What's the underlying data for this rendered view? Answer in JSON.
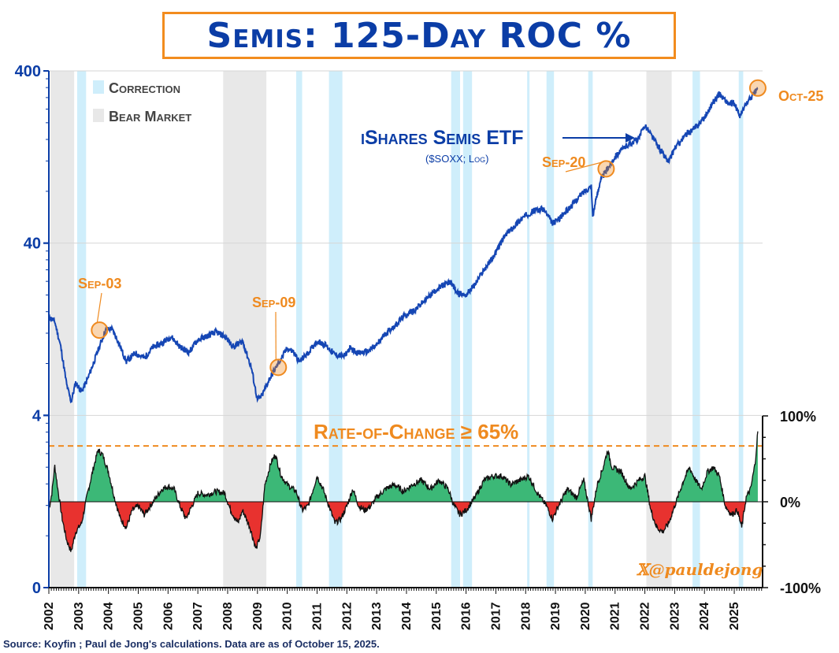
{
  "title": "Semis: 125-Day ROC %",
  "source": "Source: Koyfin ; Paul de Jong's calculations. Data are as of October 15, 2025.",
  "watermark": "𝕏@pauldejong",
  "colors": {
    "price": "#1546b4",
    "correction": "#cfeefb",
    "bear": "#e8e8e8",
    "positive": "#3cb877",
    "negative": "#e8322f",
    "threshold": "#ef8a1f",
    "accent": "#ef8a1f"
  },
  "chart_data": [
    {
      "type": "line",
      "name": "iShares Semis ETF",
      "series_label": "iShares Semis ETF",
      "series_sublabel": "($SOXX; Log)",
      "y_scale": "log",
      "ylim": [
        0,
        400
      ],
      "yticks": [
        "0",
        "4",
        "40",
        "400"
      ],
      "xticks": [
        "2002",
        "2003",
        "2004",
        "2005",
        "2006",
        "2007",
        "2008",
        "2009",
        "2010",
        "2011",
        "2012",
        "2013",
        "2014",
        "2015",
        "2016",
        "2017",
        "2018",
        "2019",
        "2020",
        "2021",
        "2022",
        "2023",
        "2024",
        "2025"
      ],
      "legend": [
        {
          "label": "Correction"
        },
        {
          "label": "Bear Market"
        }
      ],
      "bear_markets": [
        [
          "2002.05",
          "2002.85"
        ],
        [
          "2007.85",
          "2009.3"
        ],
        [
          "2022.05",
          "2022.9"
        ]
      ],
      "corrections": [
        [
          "2002.95",
          "2003.25"
        ],
        [
          "2010.3",
          "2010.5"
        ],
        [
          "2011.4",
          "2011.85"
        ],
        [
          "2015.5",
          "2015.8"
        ],
        [
          "2015.9",
          "2016.2"
        ],
        [
          "2018.05",
          "2018.1"
        ],
        [
          "2018.7",
          "2018.95"
        ],
        [
          "2020.1",
          "2020.25"
        ],
        [
          "2023.6",
          "2023.85"
        ],
        [
          "2025.15",
          "2025.3"
        ]
      ],
      "points": [
        [
          "2002.0",
          15
        ],
        [
          "2002.2",
          14
        ],
        [
          "2002.4",
          10
        ],
        [
          "2002.6",
          6
        ],
        [
          "2002.75",
          4.8
        ],
        [
          "2002.9",
          6.2
        ],
        [
          "2003.1",
          5.5
        ],
        [
          "2003.3",
          6.5
        ],
        [
          "2003.6",
          9
        ],
        [
          "2003.9",
          12.5
        ],
        [
          "2004.1",
          12.8
        ],
        [
          "2004.3",
          11
        ],
        [
          "2004.6",
          8.2
        ],
        [
          "2004.9",
          9.2
        ],
        [
          "2005.2",
          8.6
        ],
        [
          "2005.5",
          10
        ],
        [
          "2005.8",
          10.5
        ],
        [
          "2006.1",
          11.5
        ],
        [
          "2006.4",
          10
        ],
        [
          "2006.7",
          9.3
        ],
        [
          "2007.0",
          11
        ],
        [
          "2007.3",
          11.5
        ],
        [
          "2007.6",
          12.2
        ],
        [
          "2007.9",
          11.5
        ],
        [
          "2008.2",
          10
        ],
        [
          "2008.5",
          10.8
        ],
        [
          "2008.8",
          7.5
        ],
        [
          "2009.0",
          4.9
        ],
        [
          "2009.15",
          5.2
        ],
        [
          "2009.4",
          6.5
        ],
        [
          "2009.7",
          8
        ],
        [
          "2010.0",
          9.8
        ],
        [
          "2010.2",
          9.4
        ],
        [
          "2010.4",
          8.2
        ],
        [
          "2010.7",
          9.2
        ],
        [
          "2011.0",
          10.8
        ],
        [
          "2011.3",
          10.2
        ],
        [
          "2011.6",
          9
        ],
        [
          "2011.9",
          8.8
        ],
        [
          "2012.1",
          9.8
        ],
        [
          "2012.4",
          9.2
        ],
        [
          "2012.7",
          9.4
        ],
        [
          "2013.0",
          10.2
        ],
        [
          "2013.3",
          12
        ],
        [
          "2013.6",
          13.2
        ],
        [
          "2013.9",
          15
        ],
        [
          "2014.3",
          16.5
        ],
        [
          "2014.7",
          19.2
        ],
        [
          "2015.0",
          21.5
        ],
        [
          "2015.3",
          23
        ],
        [
          "2015.5",
          23.8
        ],
        [
          "2015.7",
          20.5
        ],
        [
          "2016.0",
          20
        ],
        [
          "2016.3",
          23
        ],
        [
          "2016.6",
          28
        ],
        [
          "2016.9",
          33
        ],
        [
          "2017.3",
          44
        ],
        [
          "2017.7",
          52
        ],
        [
          "2018.0",
          58
        ],
        [
          "2018.3",
          62
        ],
        [
          "2018.6",
          63
        ],
        [
          "2018.9",
          52
        ],
        [
          "2019.1",
          55
        ],
        [
          "2019.5",
          65
        ],
        [
          "2019.9",
          78
        ],
        [
          "2020.2",
          86
        ],
        [
          "2020.25",
          58
        ],
        [
          "2020.5",
          92
        ],
        [
          "2020.8",
          112
        ],
        [
          "2021.0",
          128
        ],
        [
          "2021.4",
          148
        ],
        [
          "2021.8",
          162
        ],
        [
          "2022.0",
          195
        ],
        [
          "2022.3",
          160
        ],
        [
          "2022.6",
          132
        ],
        [
          "2022.8",
          118
        ],
        [
          "2023.0",
          142
        ],
        [
          "2023.4",
          172
        ],
        [
          "2023.7",
          187
        ],
        [
          "2024.0",
          215
        ],
        [
          "2024.3",
          265
        ],
        [
          "2024.5",
          295
        ],
        [
          "2024.8",
          258
        ],
        [
          "2025.0",
          258
        ],
        [
          "2025.2",
          218
        ],
        [
          "2025.4",
          258
        ],
        [
          "2025.65",
          292
        ],
        [
          "2025.79",
          318
        ]
      ],
      "annotations": [
        {
          "label": "Sep-03",
          "x": "2003.7",
          "y": 12.5
        },
        {
          "label": "Sep-09",
          "x": "2009.7",
          "y": 7.6
        },
        {
          "label": "Sep-20",
          "x": "2020.7",
          "y": 108
        },
        {
          "label": "Oct-25",
          "x": "2025.79",
          "y": 318
        }
      ]
    },
    {
      "type": "area",
      "name": "125-Day ROC %",
      "ylim": [
        -100,
        100
      ],
      "yticks": [
        "-100%",
        "0%",
        "100%"
      ],
      "threshold": {
        "label": "Rate-of-Change ≥ 65%",
        "value": 65
      },
      "points": [
        [
          "2002.0",
          -10
        ],
        [
          "2002.1",
          10
        ],
        [
          "2002.2",
          42
        ],
        [
          "2002.3",
          15
        ],
        [
          "2002.45",
          -20
        ],
        [
          "2002.6",
          -45
        ],
        [
          "2002.75",
          -58
        ],
        [
          "2002.9",
          -35
        ],
        [
          "2003.1",
          -25
        ],
        [
          "2003.3",
          10
        ],
        [
          "2003.5",
          40
        ],
        [
          "2003.65",
          60
        ],
        [
          "2003.8",
          55
        ],
        [
          "2004.0",
          35
        ],
        [
          "2004.2",
          5
        ],
        [
          "2004.4",
          -20
        ],
        [
          "2004.6",
          -30
        ],
        [
          "2004.8",
          -10
        ],
        [
          "2005.0",
          -5
        ],
        [
          "2005.2",
          -15
        ],
        [
          "2005.4",
          -5
        ],
        [
          "2005.6",
          5
        ],
        [
          "2005.8",
          15
        ],
        [
          "2006.0",
          18
        ],
        [
          "2006.2",
          15
        ],
        [
          "2006.4",
          -5
        ],
        [
          "2006.6",
          -20
        ],
        [
          "2006.8",
          -5
        ],
        [
          "2007.0",
          10
        ],
        [
          "2007.3",
          8
        ],
        [
          "2007.6",
          12
        ],
        [
          "2007.9",
          10
        ],
        [
          "2008.1",
          -10
        ],
        [
          "2008.35",
          -25
        ],
        [
          "2008.5",
          -10
        ],
        [
          "2008.75",
          -30
        ],
        [
          "2008.95",
          -55
        ],
        [
          "2009.1",
          -40
        ],
        [
          "2009.25",
          20
        ],
        [
          "2009.45",
          45
        ],
        [
          "2009.6",
          55
        ],
        [
          "2009.8",
          30
        ],
        [
          "2010.0",
          20
        ],
        [
          "2010.3",
          12
        ],
        [
          "2010.5",
          -10
        ],
        [
          "2010.7",
          -5
        ],
        [
          "2011.0",
          30
        ],
        [
          "2011.2",
          15
        ],
        [
          "2011.4",
          -5
        ],
        [
          "2011.6",
          -25
        ],
        [
          "2011.8",
          -20
        ],
        [
          "2012.0",
          -5
        ],
        [
          "2012.2",
          15
        ],
        [
          "2012.4",
          -5
        ],
        [
          "2012.6",
          -10
        ],
        [
          "2012.8",
          -5
        ],
        [
          "2013.0",
          5
        ],
        [
          "2013.3",
          15
        ],
        [
          "2013.6",
          20
        ],
        [
          "2013.9",
          12
        ],
        [
          "2014.2",
          20
        ],
        [
          "2014.5",
          25
        ],
        [
          "2014.8",
          15
        ],
        [
          "2015.1",
          25
        ],
        [
          "2015.4",
          15
        ],
        [
          "2015.6",
          -5
        ],
        [
          "2015.8",
          -15
        ],
        [
          "2016.0",
          -10
        ],
        [
          "2016.3",
          5
        ],
        [
          "2016.6",
          25
        ],
        [
          "2016.9",
          30
        ],
        [
          "2017.2",
          30
        ],
        [
          "2017.5",
          20
        ],
        [
          "2017.8",
          25
        ],
        [
          "2018.1",
          30
        ],
        [
          "2018.4",
          10
        ],
        [
          "2018.7",
          -5
        ],
        [
          "2018.9",
          -20
        ],
        [
          "2019.1",
          -5
        ],
        [
          "2019.4",
          15
        ],
        [
          "2019.7",
          5
        ],
        [
          "2019.95",
          25
        ],
        [
          "2020.2",
          -20
        ],
        [
          "2020.4",
          20
        ],
        [
          "2020.6",
          40
        ],
        [
          "2020.75",
          60
        ],
        [
          "2020.9",
          40
        ],
        [
          "2021.2",
          35
        ],
        [
          "2021.5",
          15
        ],
        [
          "2021.8",
          25
        ],
        [
          "2022.0",
          30
        ],
        [
          "2022.2",
          -10
        ],
        [
          "2022.4",
          -30
        ],
        [
          "2022.6",
          -35
        ],
        [
          "2022.8",
          -25
        ],
        [
          "2023.0",
          -5
        ],
        [
          "2023.3",
          25
        ],
        [
          "2023.5",
          40
        ],
        [
          "2023.7",
          25
        ],
        [
          "2023.9",
          15
        ],
        [
          "2024.1",
          35
        ],
        [
          "2024.3",
          40
        ],
        [
          "2024.5",
          30
        ],
        [
          "2024.7",
          -5
        ],
        [
          "2024.9",
          -15
        ],
        [
          "2025.1",
          -10
        ],
        [
          "2025.25",
          -30
        ],
        [
          "2025.4",
          5
        ],
        [
          "2025.55",
          15
        ],
        [
          "2025.7",
          45
        ],
        [
          "2025.79",
          82
        ]
      ]
    }
  ]
}
